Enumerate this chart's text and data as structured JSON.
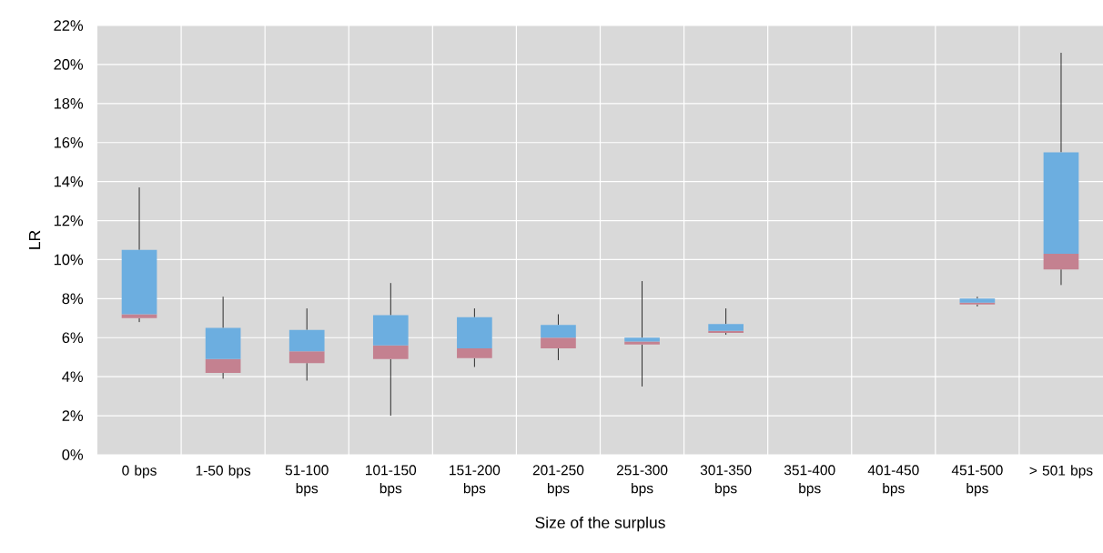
{
  "chart_data": {
    "type": "box",
    "xlabel": "Size of the surplus",
    "ylabel": "LR",
    "categories": [
      "0 bps",
      "1-50 bps",
      "51-100 bps",
      "101-150 bps",
      "151-200 bps",
      "201-250 bps",
      "251-300 bps",
      "301-350 bps",
      "351-400 bps",
      "401-450 bps",
      "451-500 bps",
      "> 501 bps"
    ],
    "boxes": [
      {
        "low": 6.8,
        "q1": 7.0,
        "median": 7.2,
        "q3": 10.5,
        "high": 13.7
      },
      {
        "low": 3.9,
        "q1": 4.2,
        "median": 4.9,
        "q3": 6.5,
        "high": 8.1
      },
      {
        "low": 3.8,
        "q1": 4.7,
        "median": 5.3,
        "q3": 6.4,
        "high": 7.5
      },
      {
        "low": 2.0,
        "q1": 4.9,
        "median": 5.6,
        "q3": 7.15,
        "high": 8.8
      },
      {
        "low": 4.5,
        "q1": 4.95,
        "median": 5.45,
        "q3": 7.05,
        "high": 7.5
      },
      {
        "low": 4.85,
        "q1": 5.45,
        "median": 6.0,
        "q3": 6.65,
        "high": 7.2
      },
      {
        "low": 3.5,
        "q1": 5.65,
        "median": 5.8,
        "q3": 6.0,
        "high": 8.9
      },
      {
        "low": 6.15,
        "q1": 6.25,
        "median": 6.35,
        "q3": 6.7,
        "high": 7.5
      },
      null,
      null,
      {
        "low": 7.6,
        "q1": 7.7,
        "median": 7.8,
        "q3": 8.0,
        "high": 8.1
      },
      {
        "low": 8.7,
        "q1": 9.5,
        "median": 10.3,
        "q3": 15.5,
        "high": 20.6
      }
    ],
    "colors": [
      [
        "#c48190",
        "#6caee0"
      ],
      [
        "#c48190",
        "#6caee0"
      ],
      [
        "#c48190",
        "#6caee0"
      ],
      [
        "#c48190",
        "#6caee0"
      ],
      [
        "#c48190",
        "#6caee0"
      ],
      [
        "#c48190",
        "#6caee0"
      ],
      [
        "#c48190",
        "#6caee0"
      ],
      [
        "#c48190",
        "#6caee0"
      ],
      null,
      null,
      [
        "#c48190",
        "#6caee0"
      ],
      [
        "#c48190",
        "#6caee0"
      ]
    ],
    "ylim": [
      0,
      22
    ],
    "yticks": [
      {
        "value": 0,
        "label": "0%"
      },
      {
        "value": 2,
        "label": "2%"
      },
      {
        "value": 4,
        "label": "4%"
      },
      {
        "value": 6,
        "label": "6%"
      },
      {
        "value": 8,
        "label": "8%"
      },
      {
        "value": 10,
        "label": "10%"
      },
      {
        "value": 12,
        "label": "12%"
      },
      {
        "value": 14,
        "label": "14%"
      },
      {
        "value": 16,
        "label": "16%"
      },
      {
        "value": 18,
        "label": "18%"
      },
      {
        "value": 20,
        "label": "20%"
      },
      {
        "value": 22,
        "label": "22%"
      }
    ],
    "grid": true
  }
}
